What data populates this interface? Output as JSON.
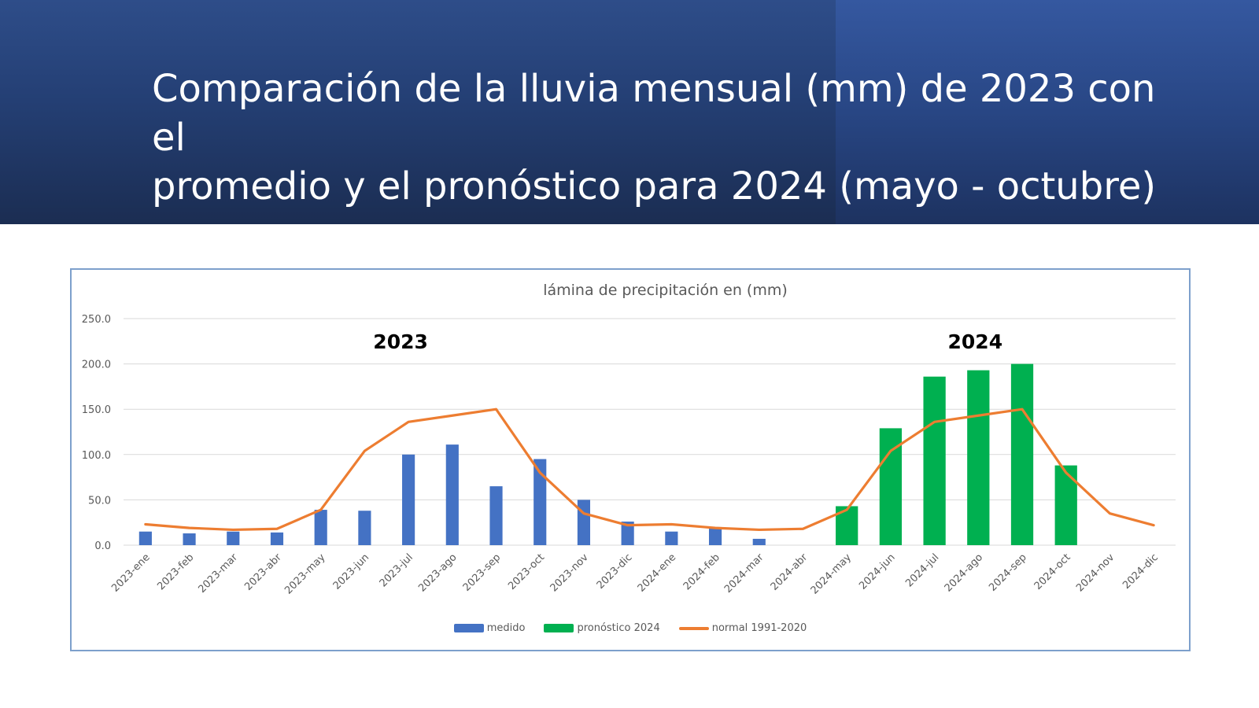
{
  "slide": {
    "title": "Comparación de la lluvia mensual (mm) de 2023 con el\npromedio y el pronóstico para 2024  (mayo - octubre)"
  },
  "colors": {
    "banner_top": "#2e4d89",
    "banner_bottom": "#1b2d52",
    "medido": "#4472c4",
    "pronostico": "#00b050",
    "normal": "#ed7d31",
    "frame": "#7da0cc",
    "grid": "#d9d9d9"
  },
  "chart_data": {
    "type": "bar",
    "title": "lámina de precipitación en (mm)",
    "ylim": [
      0,
      250
    ],
    "ytick_step": 50,
    "y_tick_labels": [
      "0.0",
      "50.0",
      "100.0",
      "150.0",
      "200.0",
      "250.0"
    ],
    "grid": true,
    "legend_position": "bottom",
    "categories": [
      "2023-ene",
      "2023-feb",
      "2023-mar",
      "2023-abr",
      "2023-may",
      "2023-jun",
      "2023-jul",
      "2023-ago",
      "2023-sep",
      "2023-oct",
      "2023-nov",
      "2023-dic",
      "2024-ene",
      "2024-feb",
      "2024-mar",
      "2024-abr",
      "2024-may",
      "2024-jun",
      "2024-jul",
      "2024-ago",
      "2024-sep",
      "2024-oct",
      "2024-nov",
      "2024-dic"
    ],
    "series": [
      {
        "name": "medido",
        "type": "bar",
        "color": "#4472c4",
        "values": [
          15,
          13,
          15,
          14,
          39,
          38,
          100,
          111,
          65,
          95,
          50,
          26,
          15,
          20,
          7,
          null,
          null,
          null,
          null,
          null,
          null,
          null,
          null,
          null
        ]
      },
      {
        "name": "pronóstico 2024",
        "type": "bar",
        "color": "#00b050",
        "values": [
          null,
          null,
          null,
          null,
          null,
          null,
          null,
          null,
          null,
          null,
          null,
          null,
          null,
          null,
          null,
          null,
          43,
          129,
          186,
          193,
          200,
          88,
          null,
          null
        ]
      },
      {
        "name": "normal 1991-2020",
        "type": "line",
        "color": "#ed7d31",
        "values": [
          23,
          19,
          17,
          18,
          39,
          104,
          136,
          143,
          150,
          80,
          35,
          22,
          23,
          19,
          17,
          18,
          39,
          104,
          136,
          143,
          150,
          80,
          35,
          22
        ]
      }
    ],
    "annotations": [
      {
        "text": "2023",
        "x": "2023-jul"
      },
      {
        "text": "2024",
        "x": "2024-ago"
      }
    ]
  }
}
